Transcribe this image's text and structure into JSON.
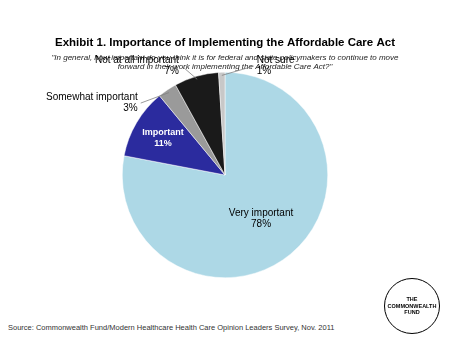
{
  "chart_data": {
    "type": "pie",
    "title": "Exhibit 1. Importance of Implementing the Affordable Care Act",
    "subtitle": "\"In general, how important do you think it is for federal and state policymakers to continue to move\nforward in their work implementing the Affordable Care Act?\"",
    "categories": [
      "Very important",
      "Important",
      "Somewhat important",
      "Not at all important",
      "Not sure"
    ],
    "values": [
      78,
      11,
      3,
      7,
      1
    ],
    "value_labels": [
      "78%",
      "11%",
      "3%",
      "7%",
      "1%"
    ],
    "colors": [
      "#add8e6",
      "#2b2b9e",
      "#9a9a9a",
      "#1a1a1a",
      "#c8c8c8"
    ],
    "data_labels": true,
    "annotations": [
      "Source: Commonwealth Fund/Modern Healthcare Health Care Opinion Leaders Survey, Nov. 2011",
      "THE\nCOMMONWEALTH\nFUND"
    ]
  }
}
